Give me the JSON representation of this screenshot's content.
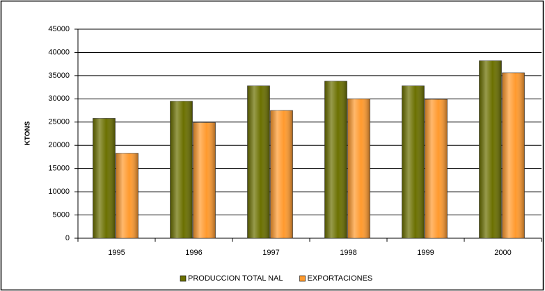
{
  "chart_data": {
    "type": "bar",
    "y_label": "KTONS",
    "categories": [
      "1995",
      "1996",
      "1997",
      "1998",
      "1999",
      "2000"
    ],
    "series": [
      {
        "name": "PRODUCCION TOTAL NAL",
        "color": "#6b7000",
        "values": [
          25800,
          29500,
          32800,
          33800,
          32800,
          38200
        ]
      },
      {
        "name": "EXPORTACIONES",
        "color": "#ff9a2e",
        "values": [
          18300,
          24900,
          27500,
          30000,
          29900,
          35600
        ]
      }
    ],
    "ylim": [
      0,
      45000
    ],
    "yticks": [
      0,
      5000,
      10000,
      15000,
      20000,
      25000,
      30000,
      35000,
      40000,
      45000
    ],
    "grid": true,
    "legend": "bottom"
  }
}
